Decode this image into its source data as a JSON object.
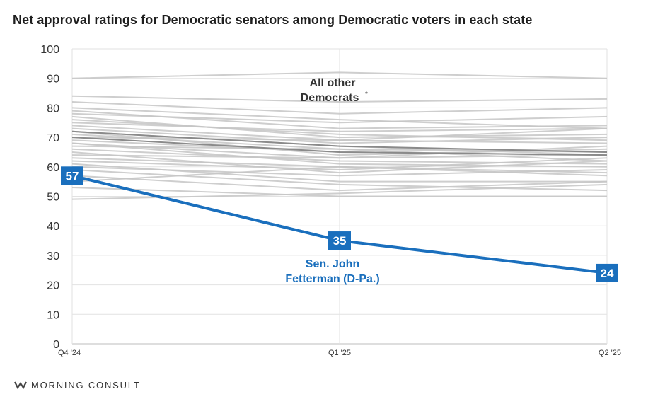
{
  "title": "Net approval ratings for Democratic senators among Democratic voters in each state",
  "footer": {
    "brand": "MORNING CONSULT",
    "logo_icon": "morning-consult-logo-icon"
  },
  "colors": {
    "highlight": "#1a6fbd",
    "others": "#c6c6c6",
    "others_dark": "#8a8a8a",
    "grid": "#e2e2e2"
  },
  "chart_data": {
    "type": "line",
    "title": "Net approval ratings for Democratic senators among Democratic voters in each state",
    "x": [
      "Q4 '24",
      "Q1 '25",
      "Q2 '25"
    ],
    "ylim": [
      0,
      100
    ],
    "yticks": [
      0,
      10,
      20,
      30,
      40,
      50,
      60,
      70,
      80,
      90,
      100
    ],
    "grid": true,
    "annotations": {
      "others_label": [
        "All other",
        "Democrats"
      ],
      "others_label_suffix": "*",
      "highlight_label": [
        "Sen. John",
        "Fetterman (D-Pa.)"
      ]
    },
    "highlight": {
      "name": "Sen. John Fetterman (D-Pa.)",
      "values": [
        57,
        35,
        24
      ],
      "labels": [
        "57",
        "35",
        "24"
      ]
    },
    "others": [
      [
        90,
        92,
        90
      ],
      [
        84,
        82,
        83
      ],
      [
        82,
        78,
        80
      ],
      [
        80,
        76,
        73
      ],
      [
        79,
        73,
        74
      ],
      [
        78,
        75,
        77
      ],
      [
        77,
        70,
        71
      ],
      [
        76,
        71,
        69
      ],
      [
        75,
        72,
        73
      ],
      [
        74,
        69,
        73
      ],
      [
        73,
        68,
        70
      ],
      [
        72,
        67,
        64
      ],
      [
        72,
        64,
        66
      ],
      [
        71,
        66,
        62
      ],
      [
        70,
        69,
        68
      ],
      [
        69,
        65,
        64
      ],
      [
        68,
        63,
        67
      ],
      [
        68,
        61,
        60
      ],
      [
        67,
        66,
        65
      ],
      [
        66,
        62,
        61
      ],
      [
        65,
        58,
        62
      ],
      [
        64,
        63,
        64
      ],
      [
        63,
        60,
        57
      ],
      [
        62,
        59,
        63
      ],
      [
        61,
        55,
        55
      ],
      [
        60,
        57,
        59
      ],
      [
        59,
        54,
        52
      ],
      [
        57,
        52,
        55
      ],
      [
        55,
        60,
        58
      ],
      [
        53,
        50,
        50
      ],
      [
        49,
        51,
        54
      ]
    ],
    "others_dark": [
      [
        72,
        67,
        65
      ],
      [
        70,
        65,
        64
      ]
    ]
  }
}
